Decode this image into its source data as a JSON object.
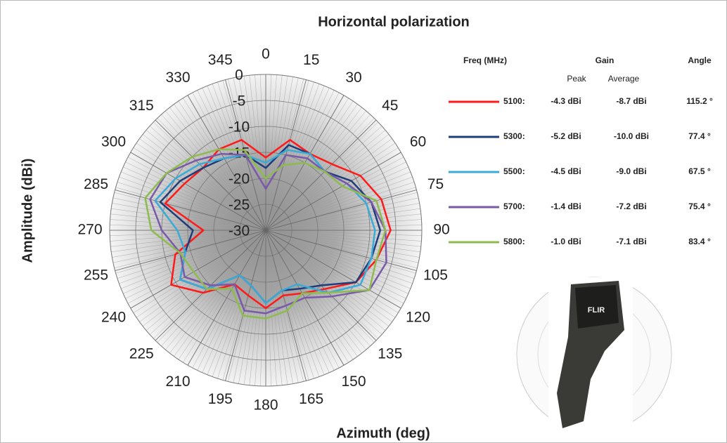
{
  "chart_data": {
    "type": "polar",
    "title": "Horizontal polarization",
    "x_label": "Azimuth (deg)",
    "y_label": "Amplitude (dBi)",
    "theta": [
      0,
      15,
      30,
      45,
      60,
      75,
      90,
      105,
      120,
      135,
      150,
      165,
      180,
      195,
      210,
      225,
      240,
      255,
      270,
      285,
      300,
      315,
      330,
      345
    ],
    "rlim": [
      -30,
      0
    ],
    "rticks": [
      -30,
      -25,
      -20,
      -15,
      -10,
      -5,
      0
    ],
    "grid": true,
    "series": [
      {
        "name": "5100:",
        "color": "#ff1a1a",
        "values": [
          -16,
          -12,
          -13,
          -12,
          -9,
          -7,
          -6,
          -8,
          -10,
          -14,
          -16,
          -17,
          -15,
          -17,
          -18,
          -13,
          -9,
          -12,
          -18,
          -10,
          -12,
          -13,
          -12,
          -12
        ]
      },
      {
        "name": "5300:",
        "color": "#1f3d7a",
        "values": [
          -18,
          -13,
          -13,
          -14,
          -11,
          -9,
          -8,
          -9,
          -10,
          -15,
          -17,
          -18,
          -16,
          -19,
          -20,
          -14,
          -11,
          -14,
          -16,
          -9,
          -11,
          -13,
          -14,
          -15
        ]
      },
      {
        "name": "5500:",
        "color": "#3aaad8",
        "values": [
          -17,
          -14,
          -13,
          -14,
          -12,
          -10,
          -9,
          -9,
          -9,
          -13,
          -18,
          -18,
          -16,
          -19,
          -20,
          -14,
          -11,
          -14,
          -13,
          -8,
          -10,
          -12,
          -14,
          -15
        ]
      },
      {
        "name": "5700:",
        "color": "#7a5aa8",
        "values": [
          -22,
          -15,
          -14,
          -14,
          -12,
          -9,
          -7,
          -6,
          -7,
          -12,
          -15,
          -15,
          -14,
          -14,
          -18,
          -15,
          -12,
          -13,
          -10,
          -7,
          -8,
          -11,
          -13,
          -15
        ]
      },
      {
        "name": "5800:",
        "color": "#8dbb4f",
        "values": [
          -20,
          -17,
          -15,
          -14,
          -13,
          -8,
          -7,
          -8,
          -7,
          -13,
          -16,
          -14,
          -13,
          -13,
          -17,
          -14,
          -14,
          -13,
          -8,
          -6,
          -8,
          -10,
          -12,
          -14
        ]
      }
    ],
    "legend_table": {
      "header": {
        "freq": "Freq (MHz)",
        "gain": "Gain",
        "angle": "Angle",
        "peak": "Peak",
        "average": "Average"
      },
      "rows": [
        {
          "peak": "-4.3 dBi",
          "average": "-8.7 dBi",
          "angle": "115.2 °"
        },
        {
          "peak": "-5.2 dBi",
          "average": "-10.0 dBi",
          "angle": "77.4 °"
        },
        {
          "peak": "-4.5 dBi",
          "average": "-9.0 dBi",
          "angle": "67.5 °"
        },
        {
          "peak": "-1.4 dBi",
          "average": "-7.2 dBi",
          "angle": "75.4 °"
        },
        {
          "peak": "-1.0 dBi",
          "average": "-7.1 dBi",
          "angle": "83.4 °"
        }
      ]
    },
    "device_label": "FLIR"
  }
}
